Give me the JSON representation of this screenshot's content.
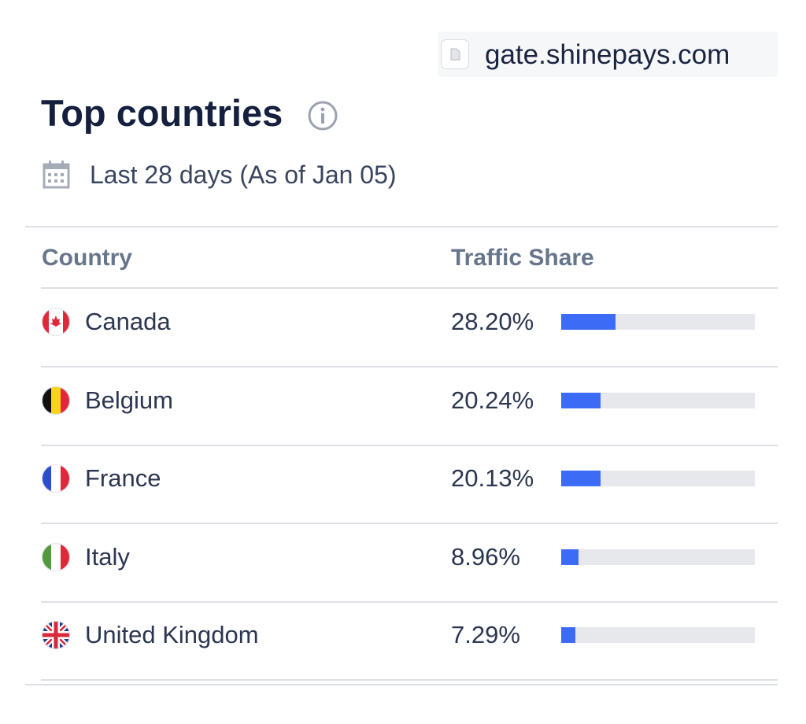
{
  "site": "gate.shinepays.com",
  "title": "Top countries",
  "period": "Last 28 days (As of Jan 05)",
  "table": {
    "columns": [
      "Country",
      "Traffic Share"
    ],
    "rows": [
      {
        "country": "Canada",
        "share": 28.2,
        "share_label": "28.20%"
      },
      {
        "country": "Belgium",
        "share": 20.24,
        "share_label": "20.24%"
      },
      {
        "country": "France",
        "share": 20.13,
        "share_label": "20.13%"
      },
      {
        "country": "Italy",
        "share": 8.96,
        "share_label": "8.96%"
      },
      {
        "country": "United Kingdom",
        "share": 7.29,
        "share_label": "7.29%"
      }
    ]
  }
}
